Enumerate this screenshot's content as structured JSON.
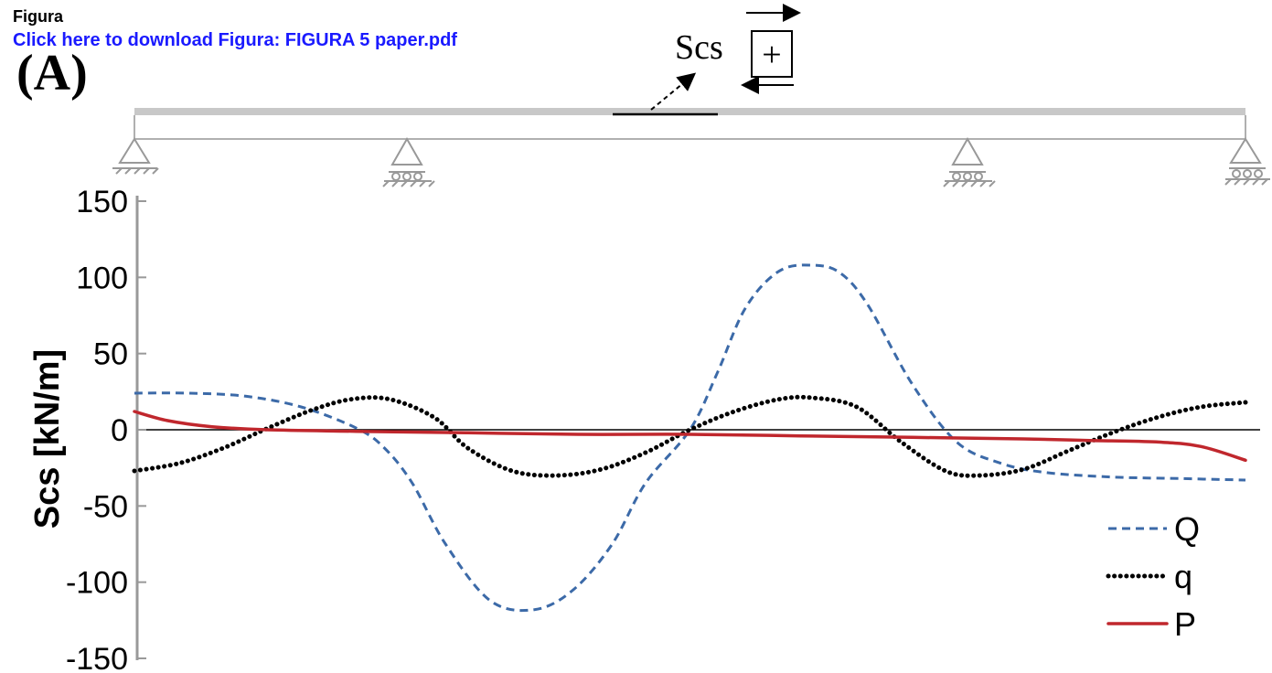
{
  "header": {
    "title": "Figura",
    "link_text": "Click here to download Figura: FIGURA 5 paper.pdf"
  },
  "panel_label": "(A)",
  "sign_convention": {
    "label": "Scs",
    "sign": "+"
  },
  "chart_data": {
    "type": "line",
    "title": "",
    "xlabel": "",
    "ylabel": "Scs [kN/m]",
    "ylim": [
      -150,
      150
    ],
    "yticks": [
      150,
      100,
      50,
      0,
      -50,
      -100,
      -150
    ],
    "xlim": [
      0,
      1
    ],
    "grid": false,
    "legend_position": "bottom-right",
    "colors": {
      "Q": "#3c6aa8",
      "q": "#000000",
      "P": "#c0272d"
    },
    "series": [
      {
        "name": "Q",
        "style": "dashed",
        "x": [
          0.0,
          0.05,
          0.1,
          0.15,
          0.2,
          0.225,
          0.25,
          0.28,
          0.32,
          0.36,
          0.395,
          0.43,
          0.46,
          0.5,
          0.525,
          0.55,
          0.58,
          0.61,
          0.635,
          0.66,
          0.7,
          0.74,
          0.78,
          0.82,
          0.88,
          0.94,
          1.0
        ],
        "y": [
          24,
          24,
          22,
          15,
          1,
          -12,
          -35,
          -75,
          -112,
          -118,
          -105,
          -75,
          -35,
          0,
          38,
          80,
          104,
          108,
          103,
          82,
          30,
          -8,
          -22,
          -28,
          -31,
          -32,
          -33
        ]
      },
      {
        "name": "q",
        "style": "dotted",
        "x": [
          0.0,
          0.04,
          0.08,
          0.12,
          0.16,
          0.195,
          0.23,
          0.27,
          0.3,
          0.34,
          0.38,
          0.42,
          0.46,
          0.5,
          0.54,
          0.58,
          0.61,
          0.65,
          0.69,
          0.73,
          0.76,
          0.8,
          0.84,
          0.88,
          0.92,
          0.96,
          1.0
        ],
        "y": [
          -27,
          -22,
          -12,
          1,
          13,
          20,
          20,
          8,
          -12,
          -27,
          -30,
          -26,
          -15,
          0,
          12,
          20,
          21,
          15,
          -8,
          -27,
          -30,
          -26,
          -14,
          -2,
          8,
          15,
          18
        ]
      },
      {
        "name": "P",
        "style": "solid",
        "x": [
          0.0,
          0.03,
          0.07,
          0.12,
          0.2,
          0.3,
          0.4,
          0.5,
          0.6,
          0.7,
          0.8,
          0.86,
          0.92,
          0.96,
          1.0
        ],
        "y": [
          12,
          6,
          2,
          0,
          -1,
          -2,
          -3,
          -3,
          -4,
          -5,
          -6,
          -7,
          -8,
          -11,
          -20
        ]
      }
    ]
  }
}
